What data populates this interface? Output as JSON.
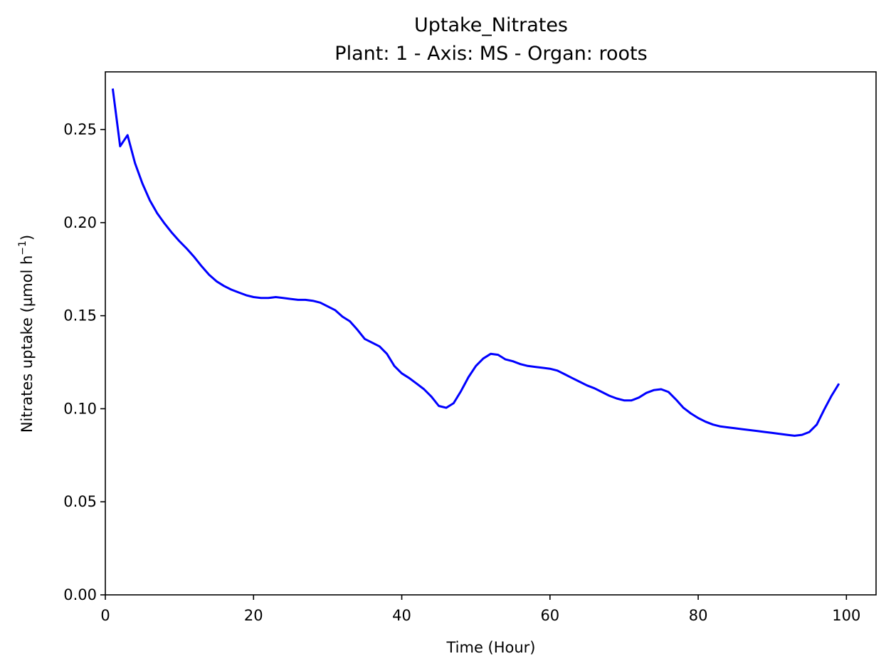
{
  "chart_data": {
    "type": "line",
    "title": "Uptake_Nitrates",
    "subtitle": "Plant: 1 - Axis: MS - Organ: roots",
    "xlabel": "Time (Hour)",
    "ylabel_main": "Nitrates uptake (µmol h",
    "ylabel_sup": "−1",
    "ylabel_close": ")",
    "xlim": [
      0,
      104
    ],
    "ylim": [
      0,
      0.281
    ],
    "xticks": [
      0,
      20,
      40,
      60,
      80,
      100
    ],
    "xtick_labels": [
      "0",
      "20",
      "40",
      "60",
      "80",
      "100"
    ],
    "yticks": [
      0,
      0.05,
      0.1,
      0.15,
      0.2,
      0.25
    ],
    "ytick_labels": [
      "0.00",
      "0.05",
      "0.10",
      "0.15",
      "0.20",
      "0.25"
    ],
    "grid": false,
    "legend": null,
    "line_color": "#0000ff",
    "series": [
      {
        "x": [
          1,
          2,
          3,
          4,
          5,
          6,
          7,
          8,
          9,
          10,
          11,
          12,
          13,
          14,
          15,
          16,
          17,
          18,
          19,
          20,
          21,
          22,
          23,
          24,
          25,
          26,
          27,
          28,
          29,
          30,
          31,
          32,
          33,
          34,
          35,
          36,
          37,
          38,
          39,
          40,
          41,
          42,
          43,
          44,
          45,
          46,
          47,
          48,
          49,
          50,
          51,
          52,
          53,
          54,
          55,
          56,
          57,
          58,
          59,
          60,
          61,
          62,
          63,
          64,
          65,
          66,
          67,
          68,
          69,
          70,
          71,
          72,
          73,
          74,
          75,
          76,
          77,
          78,
          79,
          80,
          81,
          82,
          83,
          84,
          85,
          86,
          87,
          88,
          89,
          90,
          91,
          92,
          93,
          94,
          95,
          96,
          97,
          98,
          99
        ],
        "y": [
          0.272,
          0.241,
          0.247,
          0.232,
          0.221,
          0.212,
          0.205,
          0.1995,
          0.1945,
          0.19,
          0.186,
          0.1815,
          0.1765,
          0.172,
          0.1685,
          0.166,
          0.164,
          0.1625,
          0.161,
          0.16,
          0.1595,
          0.1595,
          0.16,
          0.1595,
          0.159,
          0.1585,
          0.1585,
          0.158,
          0.157,
          0.155,
          0.153,
          0.1495,
          0.147,
          0.1425,
          0.1375,
          0.1355,
          0.1335,
          0.1295,
          0.123,
          0.119,
          0.1165,
          0.1135,
          0.1105,
          0.1065,
          0.1015,
          0.1005,
          0.103,
          0.1095,
          0.117,
          0.123,
          0.127,
          0.1295,
          0.129,
          0.1265,
          0.1255,
          0.124,
          0.123,
          0.1225,
          0.122,
          0.1215,
          0.1205,
          0.1185,
          0.1165,
          0.1145,
          0.1125,
          0.111,
          0.109,
          0.107,
          0.1055,
          0.1045,
          0.1045,
          0.106,
          0.1085,
          0.11,
          0.1105,
          0.109,
          0.105,
          0.1005,
          0.0975,
          0.095,
          0.093,
          0.0915,
          0.0905,
          0.09,
          0.0895,
          0.089,
          0.0885,
          0.088,
          0.0875,
          0.087,
          0.0865,
          0.086,
          0.0855,
          0.086,
          0.0875,
          0.0915,
          0.0995,
          0.107,
          0.1135
        ]
      }
    ]
  }
}
